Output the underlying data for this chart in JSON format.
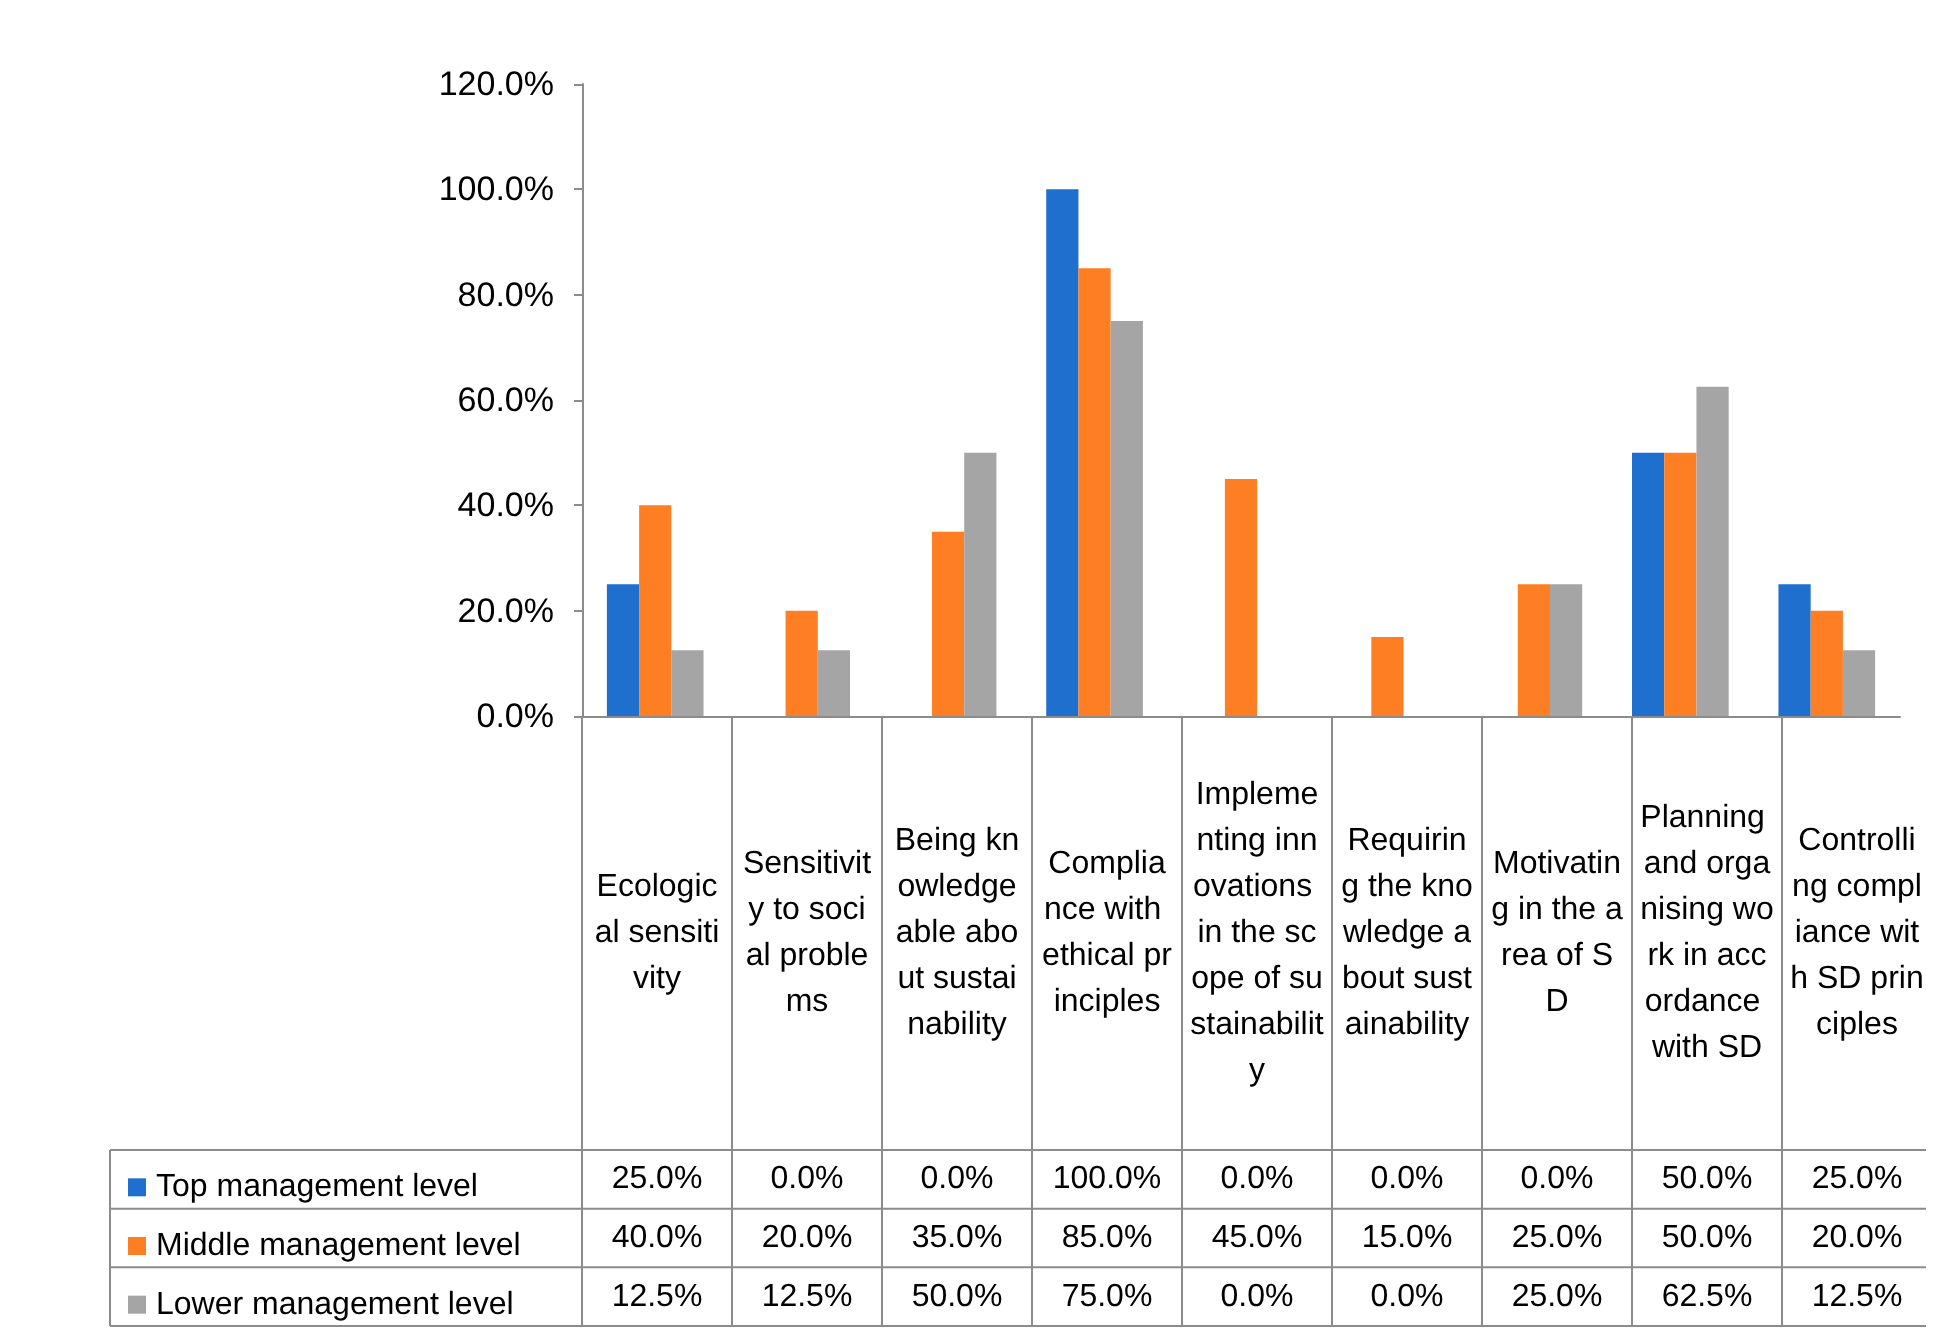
{
  "chart_data": {
    "type": "bar",
    "categories": [
      "Ecological sensitivity",
      "Sensitivity to social problems",
      "Being knowledgeable about sustainability",
      "Compliance with ethical principles",
      "Implementing innovations in the scope of sustainability",
      "Requiring the knowledge about sustainability",
      "Motivating in the area of SD",
      "Planning and organising work in accordance with SD",
      "Controlling compliance with SD principles"
    ],
    "series": [
      {
        "name": "Top management level",
        "color": "#1f6fcf",
        "values": [
          25,
          0,
          0,
          100,
          0,
          0,
          0,
          50,
          25
        ],
        "value_labels": [
          "25.0%",
          "0.0%",
          "0.0%",
          "100.0%",
          "0.0%",
          "0.0%",
          "0.0%",
          "50.0%",
          "25.0%"
        ]
      },
      {
        "name": "Middle management level",
        "color": "#fd7e23",
        "values": [
          40,
          20,
          35,
          85,
          45,
          15,
          25,
          50,
          20
        ],
        "value_labels": [
          "40.0%",
          "20.0%",
          "35.0%",
          "85.0%",
          "45.0%",
          "15.0%",
          "25.0%",
          "50.0%",
          "20.0%"
        ]
      },
      {
        "name": "Lower management level",
        "color": "#a5a5a5",
        "values": [
          12.5,
          12.5,
          50,
          75,
          0,
          0,
          25,
          62.5,
          12.5
        ],
        "value_labels": [
          "12.5%",
          "12.5%",
          "50.0%",
          "75.0%",
          "0.0%",
          "0.0%",
          "25.0%",
          "62.5%",
          "12.5%"
        ]
      }
    ],
    "ylim": [
      0,
      120
    ],
    "yticks": [
      {
        "value": 0,
        "label": "0.0%"
      },
      {
        "value": 20,
        "label": "20.0%"
      },
      {
        "value": 40,
        "label": "40.0%"
      },
      {
        "value": 60,
        "label": "60.0%"
      },
      {
        "value": 80,
        "label": "80.0%"
      },
      {
        "value": 100,
        "label": "100.0%"
      },
      {
        "value": 120,
        "label": "120.0%"
      }
    ],
    "grid": false,
    "legend": "bottom left"
  }
}
